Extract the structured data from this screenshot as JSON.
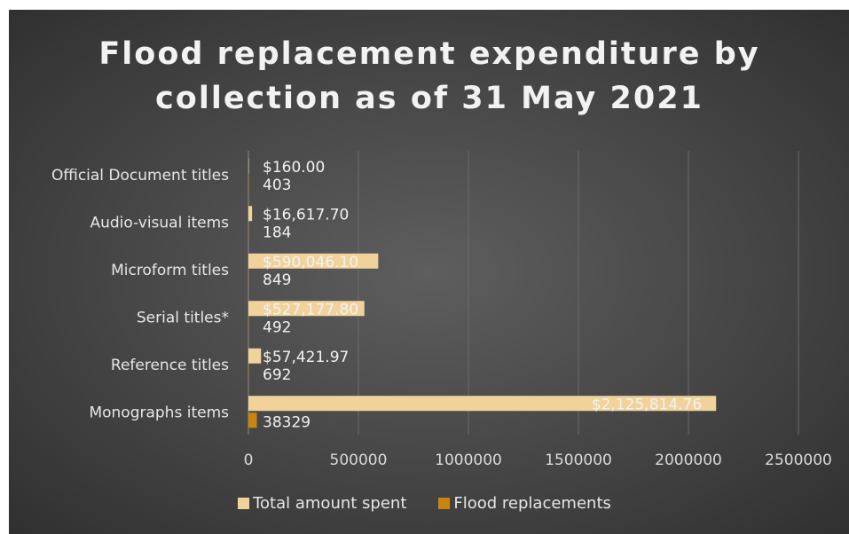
{
  "chart_data": {
    "type": "bar",
    "orientation": "horizontal",
    "title": "Flood replacement expenditure by collection as of 31 May 2021",
    "categories": [
      "Official Document titles",
      "Audio-visual items",
      "Microform titles",
      "Serial titles*",
      "Reference titles",
      "Monographs items"
    ],
    "series": [
      {
        "name": "Total amount spent",
        "color": "#f1d29b",
        "values": [
          160.0,
          16617.7,
          590046.1,
          527177.8,
          57421.97,
          2125814.76
        ],
        "labels": [
          "$160.00",
          "$16,617.70",
          "$590,046.10",
          "$527,177.80",
          "$57,421.97",
          "$2,125,814.76"
        ]
      },
      {
        "name": "Flood replacements",
        "color": "#c8860e",
        "values": [
          403,
          184,
          849,
          492,
          692,
          38329
        ],
        "labels": [
          "403",
          "184",
          "849",
          "492",
          "692",
          "38329"
        ]
      }
    ],
    "x_ticks": [
      "0",
      "500000",
      "1000000",
      "1500000",
      "2000000",
      "2500000"
    ],
    "xlim": [
      0,
      2500000
    ],
    "grid": true,
    "legend_position": "bottom"
  }
}
